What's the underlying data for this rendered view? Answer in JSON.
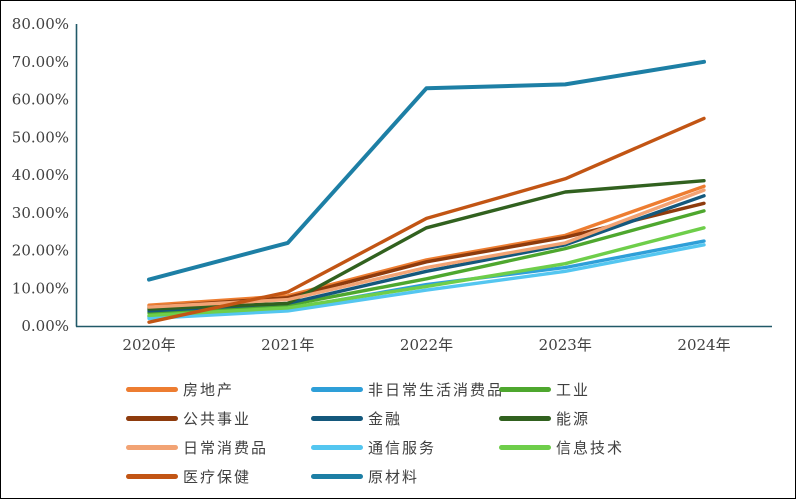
{
  "chart_data": {
    "type": "line",
    "title": "",
    "categories": [
      "2020年",
      "2021年",
      "2022年",
      "2023年",
      "2024年"
    ],
    "y_ticks": [
      "0.00%",
      "10.00%",
      "20.00%",
      "30.00%",
      "40.00%",
      "50.00%",
      "60.00%",
      "70.00%",
      "80.00%"
    ],
    "ylim": [
      0,
      80
    ],
    "grid": false,
    "legend_position": "bottom",
    "axis_color": "#215968",
    "tick_label_color": "#404040",
    "series": [
      {
        "name": "房地产",
        "color": "#ED7D31",
        "width": 3.4,
        "values": [
          5.5,
          8.0,
          17.5,
          24.0,
          37.0
        ]
      },
      {
        "name": "非日常生活消费品",
        "color": "#2E9FD8",
        "width": 3.4,
        "values": [
          2.5,
          4.5,
          11.0,
          15.5,
          22.5
        ]
      },
      {
        "name": "工业",
        "color": "#4EA72E",
        "width": 3.4,
        "values": [
          3.5,
          5.5,
          12.5,
          20.5,
          30.5
        ]
      },
      {
        "name": "公共事业",
        "color": "#8E3B0D",
        "width": 3.4,
        "values": [
          5.0,
          7.5,
          17.0,
          23.5,
          32.5
        ]
      },
      {
        "name": "金融",
        "color": "#14587C",
        "width": 3.4,
        "values": [
          4.0,
          6.0,
          14.5,
          21.5,
          34.5
        ]
      },
      {
        "name": "能源",
        "color": "#31611F",
        "width": 3.4,
        "values": [
          4.5,
          6.0,
          26.0,
          35.5,
          38.5
        ]
      },
      {
        "name": "日常消费品",
        "color": "#F2A374",
        "width": 3.4,
        "values": [
          5.0,
          7.0,
          15.5,
          22.0,
          36.0
        ]
      },
      {
        "name": "通信服务",
        "color": "#54C6F0",
        "width": 3.4,
        "values": [
          2.0,
          4.0,
          9.5,
          14.5,
          21.5
        ]
      },
      {
        "name": "信息技术",
        "color": "#6ECE4A",
        "width": 3.4,
        "values": [
          2.8,
          4.8,
          10.5,
          16.5,
          26.0
        ]
      },
      {
        "name": "医疗保健",
        "color": "#C25514",
        "width": 3.4,
        "values": [
          1.0,
          9.0,
          28.5,
          39.0,
          55.0
        ]
      },
      {
        "name": "原材料",
        "color": "#1D7FA5",
        "width": 4.0,
        "values": [
          12.3,
          22.0,
          63.0,
          64.0,
          70.0
        ]
      }
    ]
  }
}
